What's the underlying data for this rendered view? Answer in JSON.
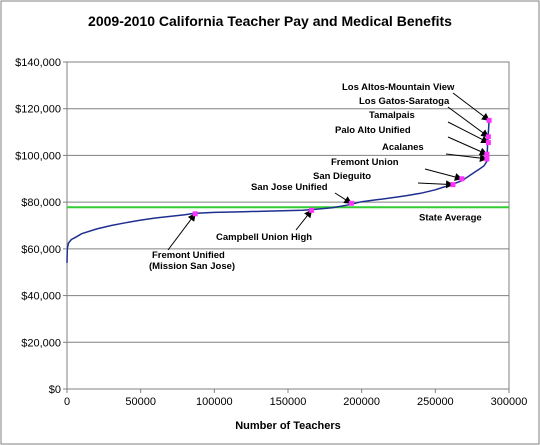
{
  "chart_data": {
    "type": "line",
    "title": "2009-2010 California Teacher Pay and Medical Benefits",
    "xlabel": "Number of Teachers",
    "ylabel": "",
    "xlim": [
      0,
      300000
    ],
    "ylim": [
      0,
      140000
    ],
    "x_ticks": [
      "0",
      "50000",
      "100000",
      "150000",
      "200000",
      "250000",
      "300000"
    ],
    "y_ticks": [
      "$0",
      "$20,000",
      "$40,000",
      "$60,000",
      "$80,000",
      "$100,000",
      "$120,000",
      "$140,000"
    ],
    "grid": "horizontal",
    "colors": {
      "series": "#1f2f8f",
      "reference": "#33cc33",
      "marker": "#ff33ff",
      "border": "#808080"
    },
    "series": [
      {
        "x": [
          0,
          200,
          1000,
          3000,
          6000,
          10000,
          20000,
          30000,
          40000,
          50000,
          60000,
          70000,
          80000,
          86000,
          100000,
          120000,
          140000,
          160000,
          166000,
          180000,
          190000,
          200000,
          210000,
          220000,
          230000,
          240000,
          250000,
          255000,
          260000,
          263000,
          268000,
          272000,
          276000,
          280000,
          283000,
          285000,
          285500,
          286000,
          286500
        ],
        "y": [
          54000,
          60000,
          62500,
          64000,
          65000,
          66500,
          68500,
          70000,
          71200,
          72300,
          73200,
          73900,
          74600,
          75200,
          75600,
          75900,
          76200,
          76500,
          76800,
          77600,
          78700,
          80200,
          81000,
          81800,
          82700,
          83800,
          85300,
          86300,
          87200,
          88000,
          89200,
          90800,
          92500,
          94200,
          95500,
          97500,
          105000,
          110000,
          115000
        ]
      }
    ],
    "reference_line": {
      "label": "State Average",
      "y": 77800
    },
    "annotations": [
      {
        "label": "Fremont Unified",
        "label2": "(Mission San Jose)",
        "x": 87000,
        "y": 75000
      },
      {
        "label": "Campbell Union High",
        "label2": "",
        "x": 166000,
        "y": 76500
      },
      {
        "label": "San Jose Unified",
        "label2": "",
        "x": 193000,
        "y": 79500
      },
      {
        "label": "San Dieguito",
        "label2": "",
        "x": 262000,
        "y": 87500
      },
      {
        "label": "Fremont Union",
        "label2": "",
        "x": 268000,
        "y": 90000
      },
      {
        "label": "Acalanes",
        "label2": "",
        "x": 285000,
        "y": 98500
      },
      {
        "label": "Palo Alto Unified",
        "label2": "",
        "x": 285000,
        "y": 100500
      },
      {
        "label": "Tamalpais",
        "label2": "",
        "x": 286000,
        "y": 105500
      },
      {
        "label": "Los Gatos-Saratoga",
        "label2": "",
        "x": 286000,
        "y": 108000
      },
      {
        "label": "Los Altos-Mountain View",
        "label2": "",
        "x": 286500,
        "y": 115000
      }
    ]
  }
}
